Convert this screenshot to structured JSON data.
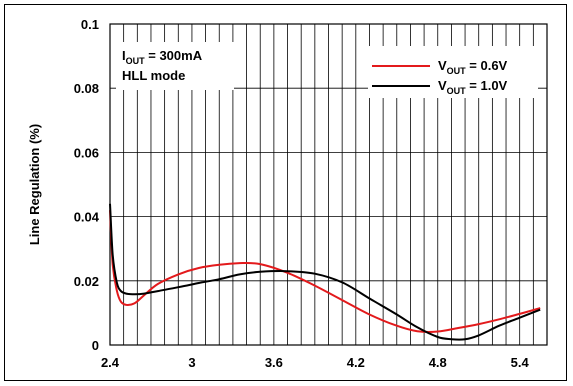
{
  "chart_data": {
    "type": "line",
    "title": "",
    "xlabel": "",
    "ylabel": "Line Regulation (%)",
    "xlim": [
      2.4,
      5.6
    ],
    "ylim": [
      0,
      0.1
    ],
    "x_ticks": [
      2.4,
      3,
      3.6,
      4.2,
      4.8,
      5.4
    ],
    "x_tick_labels": [
      "2.4",
      "3",
      "3.6",
      "4.2",
      "4.8",
      "5.4"
    ],
    "y_ticks": [
      0,
      0.02,
      0.04,
      0.06,
      0.08,
      0.1
    ],
    "y_tick_labels": [
      "0",
      "0.02",
      "0.04",
      "0.06",
      "0.08",
      "0.1"
    ],
    "x_minor_step": 0.1,
    "grid": true,
    "annotation": {
      "line1_prefix": "I",
      "line1_sub": "OUT",
      "line1_suffix": " = 300mA",
      "line2": "HLL mode"
    },
    "legend_position": "top-right",
    "series": [
      {
        "name_prefix": "V",
        "name_sub": "OUT",
        "name_suffix": " = 0.6V",
        "color": "#e31a1c",
        "x": [
          2.4,
          2.42,
          2.45,
          2.48,
          2.52,
          2.58,
          2.65,
          2.75,
          2.9,
          3.05,
          3.2,
          3.35,
          3.5,
          3.7,
          3.9,
          4.1,
          4.3,
          4.5,
          4.65,
          4.8,
          4.95,
          5.1,
          5.25,
          5.4,
          5.55
        ],
        "y": [
          0.042,
          0.025,
          0.017,
          0.0135,
          0.0125,
          0.013,
          0.0155,
          0.019,
          0.022,
          0.024,
          0.025,
          0.0255,
          0.0252,
          0.0225,
          0.0185,
          0.014,
          0.0095,
          0.006,
          0.0043,
          0.0042,
          0.0053,
          0.0065,
          0.008,
          0.0097,
          0.0115
        ]
      },
      {
        "name_prefix": "V",
        "name_sub": "OUT",
        "name_suffix": " = 1.0V",
        "color": "#000000",
        "x": [
          2.4,
          2.42,
          2.45,
          2.48,
          2.52,
          2.58,
          2.65,
          2.75,
          2.9,
          3.05,
          3.2,
          3.35,
          3.5,
          3.7,
          3.9,
          4.1,
          4.3,
          4.5,
          4.65,
          4.8,
          4.9,
          5.0,
          5.1,
          5.25,
          5.4,
          5.55
        ],
        "y": [
          0.044,
          0.028,
          0.0195,
          0.0168,
          0.016,
          0.0158,
          0.016,
          0.0168,
          0.018,
          0.0193,
          0.0205,
          0.022,
          0.0228,
          0.023,
          0.0222,
          0.0195,
          0.0145,
          0.0095,
          0.0055,
          0.0025,
          0.0018,
          0.0018,
          0.003,
          0.006,
          0.0085,
          0.011
        ]
      }
    ]
  }
}
